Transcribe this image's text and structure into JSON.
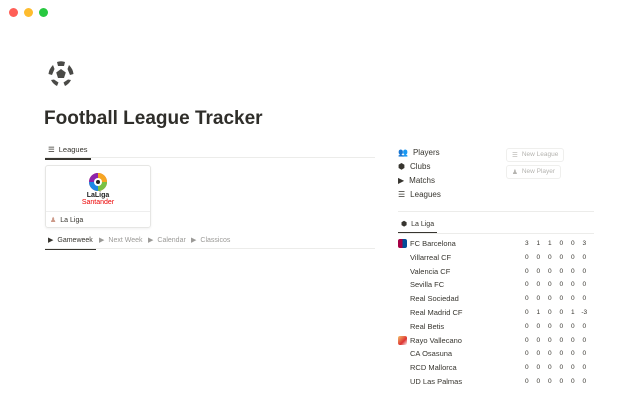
{
  "window": {
    "controls": [
      "close",
      "minimize",
      "maximize"
    ],
    "colors": [
      "#ff5f57",
      "#febc2e",
      "#28c840"
    ]
  },
  "page": {
    "title": "Football League Tracker",
    "icon": "soccer-ball-icon"
  },
  "leagues_tab": {
    "label": "Leagues"
  },
  "league_card": {
    "logo_text": "LaLiga",
    "logo_sub": "Santander",
    "label": "La Liga"
  },
  "view_tabs": [
    {
      "label": "Gameweek",
      "active": true
    },
    {
      "label": "Next Week"
    },
    {
      "label": "Calendar"
    },
    {
      "label": "Classicos"
    }
  ],
  "nav": [
    {
      "label": "Players",
      "icon": "people-icon"
    },
    {
      "label": "Clubs",
      "icon": "shield-icon"
    },
    {
      "label": "Matchs",
      "icon": "play-icon"
    },
    {
      "label": "Leagues",
      "icon": "stack-icon"
    }
  ],
  "buttons": {
    "new_league": "New League",
    "new_player": "New Player"
  },
  "standings_tab": {
    "label": "La Liga"
  },
  "standings": [
    {
      "team": "FC Barcelona",
      "crest": true,
      "values": [
        "3",
        "1",
        "1",
        "0",
        "0",
        "3"
      ]
    },
    {
      "team": "Villarreal CF",
      "values": [
        "0",
        "0",
        "0",
        "0",
        "0",
        "0"
      ]
    },
    {
      "team": "Valencia CF",
      "values": [
        "0",
        "0",
        "0",
        "0",
        "0",
        "0"
      ]
    },
    {
      "team": "Sevilla FC",
      "values": [
        "0",
        "0",
        "0",
        "0",
        "0",
        "0"
      ]
    },
    {
      "team": "Real Sociedad",
      "values": [
        "0",
        "0",
        "0",
        "0",
        "0",
        "0"
      ]
    },
    {
      "team": "Real Madrid CF",
      "values": [
        "0",
        "1",
        "0",
        "0",
        "1",
        "-3"
      ]
    },
    {
      "team": "Real Betis",
      "values": [
        "0",
        "0",
        "0",
        "0",
        "0",
        "0"
      ]
    },
    {
      "team": "Rayo Vallecano",
      "crest": true,
      "values": [
        "0",
        "0",
        "0",
        "0",
        "0",
        "0"
      ]
    },
    {
      "team": "CA Osasuna",
      "values": [
        "0",
        "0",
        "0",
        "0",
        "0",
        "0"
      ]
    },
    {
      "team": "RCD Mallorca",
      "values": [
        "0",
        "0",
        "0",
        "0",
        "0",
        "0"
      ]
    },
    {
      "team": "UD Las Palmas",
      "values": [
        "0",
        "0",
        "0",
        "0",
        "0",
        "0"
      ]
    }
  ]
}
